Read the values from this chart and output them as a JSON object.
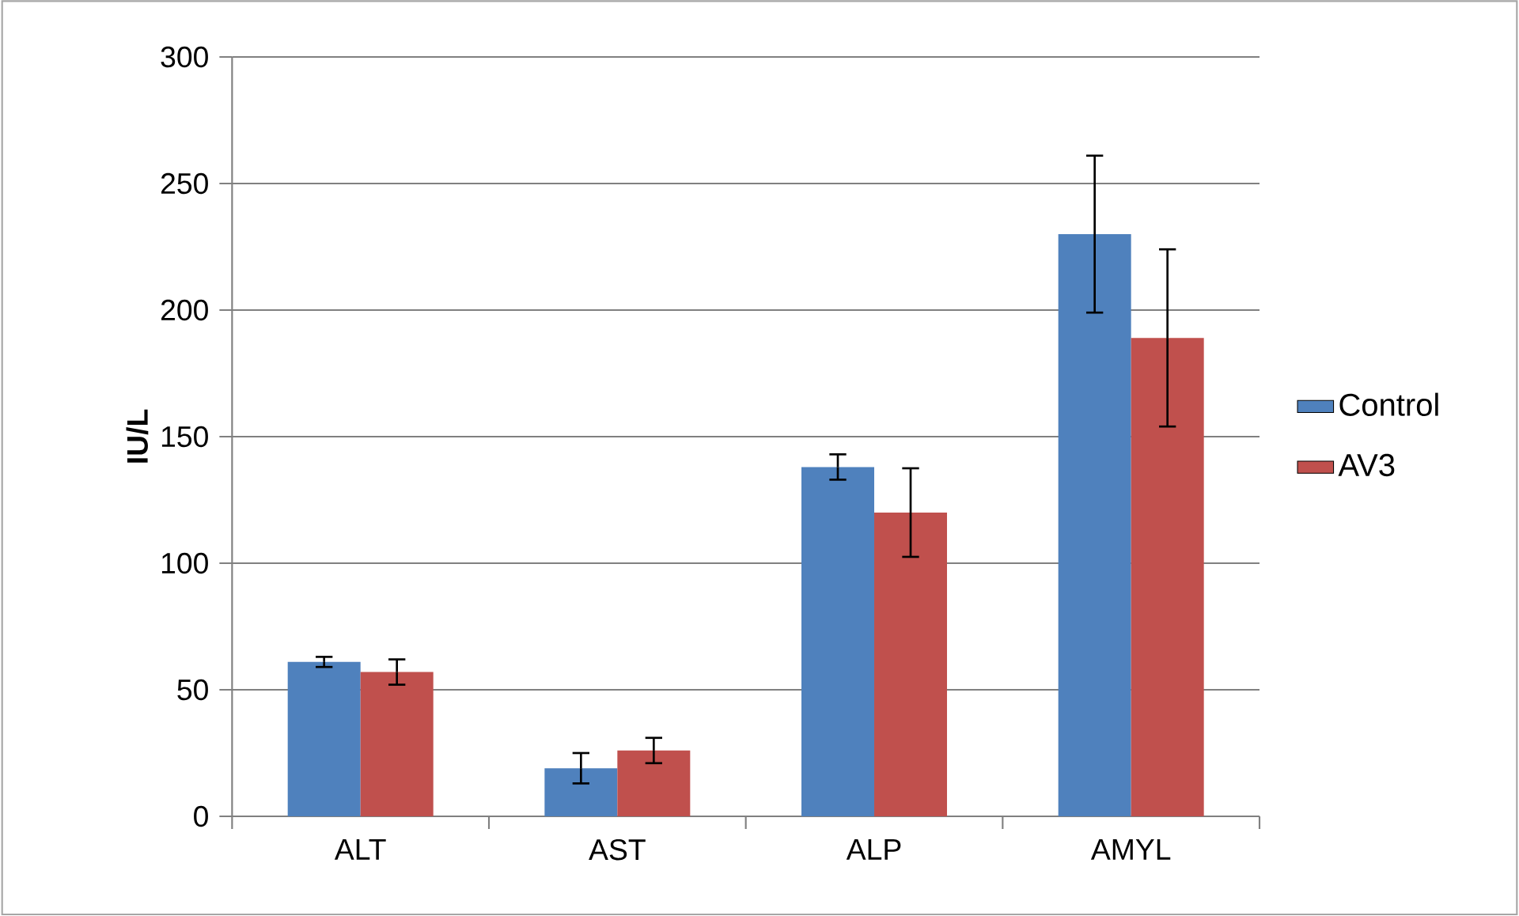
{
  "chart_data": {
    "type": "bar",
    "ylabel": "IU/L",
    "categories": [
      "ALT",
      "AST",
      "ALP",
      "AMYL"
    ],
    "series": [
      {
        "name": "Control",
        "color": "#4f81bd",
        "values": [
          61,
          19,
          138,
          230
        ],
        "errors": [
          2,
          6,
          5,
          31
        ]
      },
      {
        "name": "AV3",
        "color": "#c0504d",
        "values": [
          57,
          26,
          120,
          189
        ],
        "errors": [
          5,
          5,
          17.5,
          35
        ]
      }
    ],
    "ylim": [
      0,
      300
    ],
    "yticks": [
      0,
      50,
      100,
      150,
      200,
      250,
      300
    ],
    "grid": "y",
    "legend": "right"
  }
}
